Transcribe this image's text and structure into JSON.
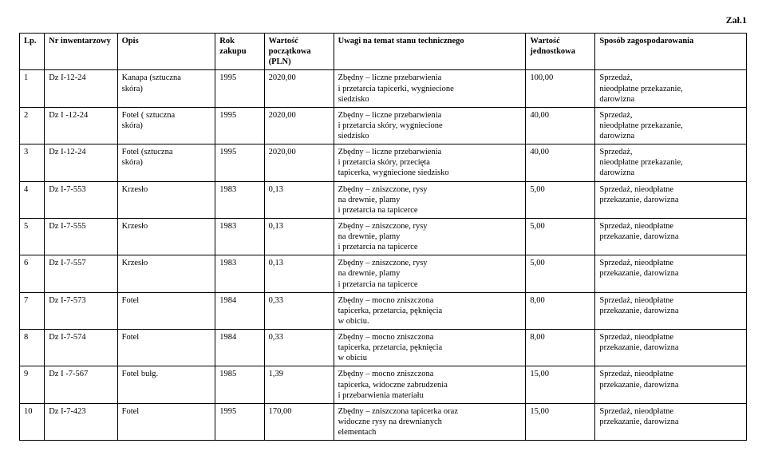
{
  "attachment": "Zał.1",
  "headers": {
    "lp": "Lp.",
    "inv": "Nr\ninwentarzowy",
    "opis": "Opis",
    "rok": "Rok\nzakupu",
    "wartosc": "Wartość\npoczątkowa\n(PLN)",
    "uwagi": "Uwagi na temat stanu\ntechnicznego",
    "jedn": "Wartość\njednostkowa",
    "sposob": "Sposób zagospodarowania"
  },
  "rows": [
    {
      "lp": "1",
      "inv": "Dz I-12-24",
      "opis": "Kanapa (sztuczna\nskóra)",
      "rok": "1995",
      "wartosc": "2020,00",
      "uwagi": "Zbędny – liczne przebarwienia\ni przetarcia tapicerki, wygniecione\nsiedzisko",
      "jedn": "100,00",
      "sposob": "Sprzedaż,\nnieodpłatne przekazanie,\ndarowizna"
    },
    {
      "lp": "2",
      "inv": "Dz I -12-24",
      "opis": "Fotel ( sztuczna\nskóra)",
      "rok": "1995",
      "wartosc": "2020,00",
      "uwagi": "Zbędny – liczne przebarwienia\ni przetarcia skóry, wygniecione\nsiedzisko",
      "jedn": "40,00",
      "sposob": "Sprzedaż,\nnieodpłatne przekazanie,\ndarowizna"
    },
    {
      "lp": "3",
      "inv": "Dz I-12-24",
      "opis": "Fotel (sztuczna\nskóra)",
      "rok": "1995",
      "wartosc": "2020,00",
      "uwagi": "Zbędny – liczne przebarwienia\ni przetarcia skóry, przecięta\ntapicerka, wygniecione siedzisko",
      "jedn": "40,00",
      "sposob": "Sprzedaż,\nnieodpłatne przekazanie,\ndarowizna"
    },
    {
      "lp": "4",
      "inv": "Dz I-7-553",
      "opis": "Krzesło",
      "rok": "1983",
      "wartosc": "0,13",
      "uwagi": "Zbędny – zniszczone, rysy\nna drewnie, plamy\ni przetarcia na tapicerce",
      "jedn": "5,00",
      "sposob": "Sprzedaż, nieodpłatne\nprzekazanie, darowizna"
    },
    {
      "lp": "5",
      "inv": "Dz I-7-555",
      "opis": "Krzesło",
      "rok": "1983",
      "wartosc": "0,13",
      "uwagi": "Zbędny – zniszczone, rysy\nna drewnie, plamy\ni przetarcia na tapicerce",
      "jedn": "5,00",
      "sposob": "Sprzedaż, nieodpłatne\nprzekazanie, darowizna"
    },
    {
      "lp": "6",
      "inv": "Dz I-7-557",
      "opis": "Krzesło",
      "rok": "1983",
      "wartosc": "0,13",
      "uwagi": "Zbędny – zniszczone, rysy\nna drewnie, plamy\ni przetarcia na tapicerce",
      "jedn": "5,00",
      "sposob": "Sprzedaż, nieodpłatne\nprzekazanie, darowizna"
    },
    {
      "lp": "7",
      "inv": "Dz I-7-573",
      "opis": "Fotel",
      "rok": "1984",
      "wartosc": "0,33",
      "uwagi": "Zbędny – mocno zniszczona\ntapicerka, przetarcia, pęknięcia\nw obiciu.",
      "jedn": "8,00",
      "sposob": "Sprzedaż, nieodpłatne\nprzekazanie, darowizna"
    },
    {
      "lp": "8",
      "inv": "Dz I-7-574",
      "opis": "Fotel",
      "rok": "1984",
      "wartosc": "0,33",
      "uwagi": "Zbędny – mocno zniszczona\ntapicerka, przetarcia, pęknięcia\nw obiciu",
      "jedn": "8,00",
      "sposob": "Sprzedaż, nieodpłatne\nprzekazanie, darowizna"
    },
    {
      "lp": "9",
      "inv": "Dz I -7-567",
      "opis": "Fotel bułg.",
      "rok": "1985",
      "wartosc": "1,39",
      "uwagi": "Zbędny – mocno zniszczona\ntapicerka, widoczne zabrudzenia\ni przebarwienia materiału",
      "jedn": "15,00",
      "sposob": "Sprzedaż, nieodpłatne\nprzekazanie, darowizna"
    },
    {
      "lp": "10",
      "inv": "Dz I-7-423",
      "opis": "Fotel",
      "rok": "1995",
      "wartosc": "170,00",
      "uwagi": "Zbędny – zniszczona tapicerka oraz\nwidoczne rysy na drewnianych\nelementach",
      "jedn": "15,00",
      "sposob": "Sprzedaż, nieodpłatne\nprzekazanie, darowizna"
    }
  ]
}
